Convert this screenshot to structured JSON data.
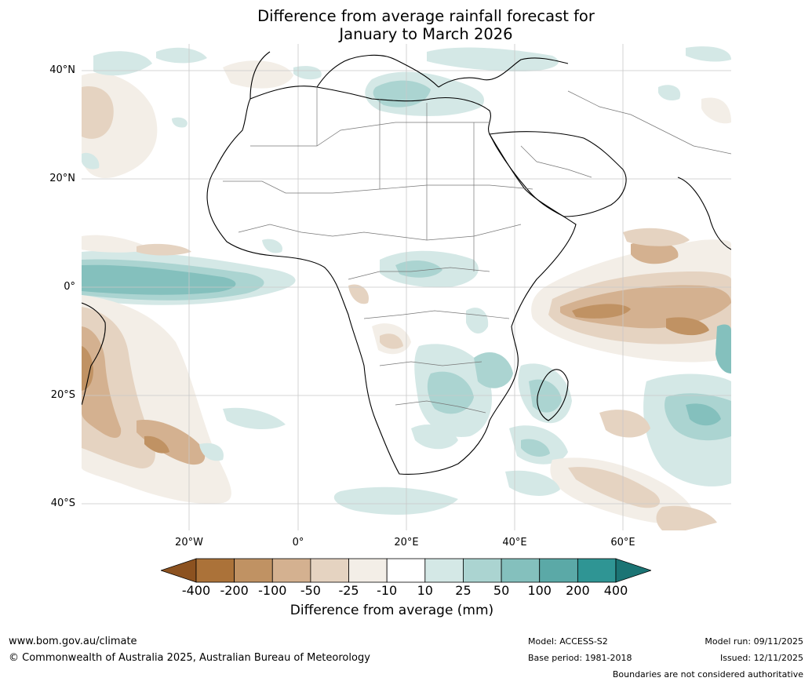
{
  "title": {
    "line1": "Difference from average rainfall forecast for",
    "line2": "January to March 2026"
  },
  "map": {
    "region": "Africa",
    "projection": "equirectangular",
    "lat_labels": [
      "40°N",
      "20°N",
      "0°",
      "20°S",
      "40°S"
    ],
    "lon_labels": [
      "20°W",
      "0°",
      "20°E",
      "40°E",
      "60°E"
    ],
    "anomaly_zones": [
      {
        "name": "equatorial-atlantic-wet",
        "category": "50 to 100"
      },
      {
        "name": "southwest-indian-ocean-dry",
        "category": "-100 to -50"
      },
      {
        "name": "southeast-atlantic-dry",
        "category": "-50 to -25"
      },
      {
        "name": "mediterranean-wet",
        "category": "25 to 50"
      },
      {
        "name": "madagascar-wet",
        "category": "25 to 50"
      }
    ]
  },
  "colorbar": {
    "ticks": [
      "-400",
      "-200",
      "-100",
      "-50",
      "-25",
      "-10",
      "10",
      "25",
      "50",
      "100",
      "200",
      "400"
    ],
    "colors": [
      "#8c5220",
      "#ab7239",
      "#c09263",
      "#d4b190",
      "#e5d3c1",
      "#f3eee7",
      "#ffffff",
      "#d4e8e6",
      "#abd4d1",
      "#84c0bd",
      "#5ba9a7",
      "#2f9594",
      "#1b7474"
    ],
    "label": "Difference from average (mm)"
  },
  "footer": {
    "website": "www.bom.gov.au/climate",
    "copyright": "© Commonwealth of Australia 2025, Australian Bureau of Meteorology",
    "model": "Model: ACCESS-S2",
    "base_period": "Base period: 1981-2018",
    "model_run": "Model run: 09/11/2025",
    "issued": "Issued: 12/11/2025",
    "disclaimer": "Boundaries are not considered authoritative"
  }
}
